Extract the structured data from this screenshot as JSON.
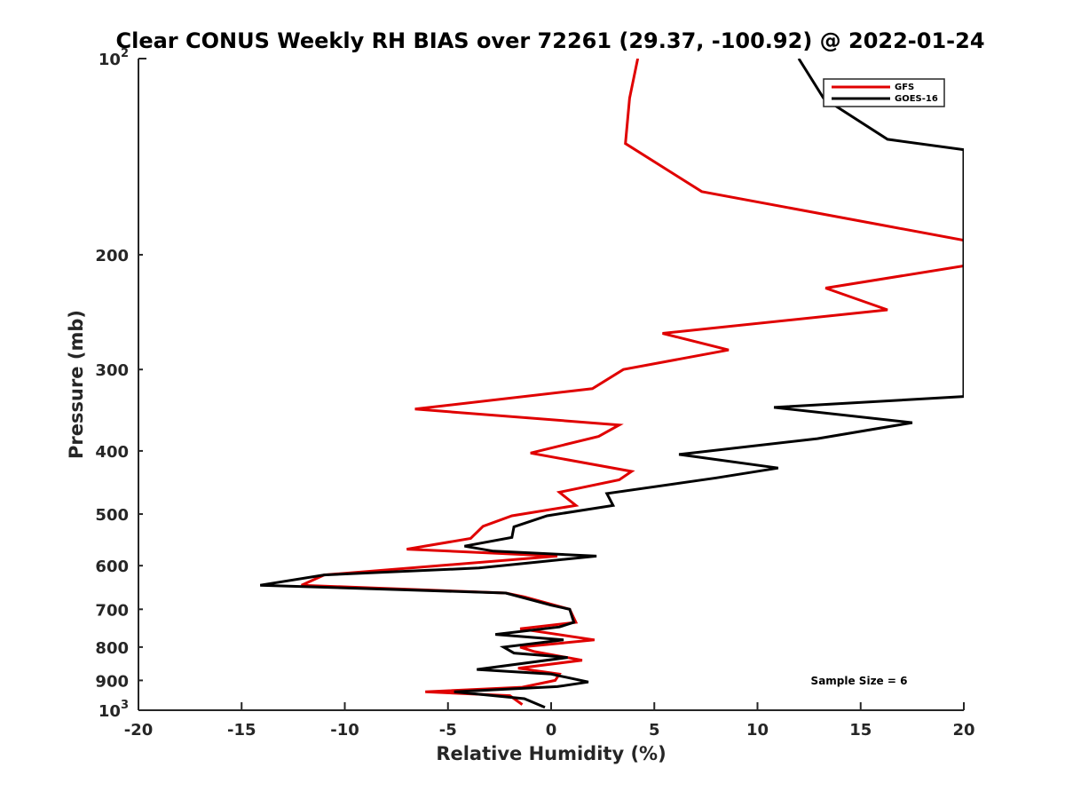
{
  "chart_data": {
    "type": "line",
    "title": "Clear CONUS Weekly RH BIAS over 72261 (29.37, -100.92) @ 2022-01-24",
    "xlabel": "Relative Humidity (%)",
    "ylabel": "Pressure (mb)",
    "xlim": [
      -20,
      20
    ],
    "ylim": [
      100,
      1000
    ],
    "y_scale": "log",
    "y_reversed": true,
    "grid": false,
    "legend_position": "top-right",
    "x_ticks": [
      "-20",
      "-15",
      "-10",
      "-5",
      "0",
      "5",
      "10",
      "15",
      "20"
    ],
    "y_ticks": [
      {
        "value": 100,
        "base": "10",
        "exp": "2"
      },
      {
        "value": 200,
        "label": "200"
      },
      {
        "value": 300,
        "label": "300"
      },
      {
        "value": 400,
        "label": "400"
      },
      {
        "value": 500,
        "label": "500"
      },
      {
        "value": 600,
        "label": "600"
      },
      {
        "value": 700,
        "label": "700"
      },
      {
        "value": 800,
        "label": "800"
      },
      {
        "value": 900,
        "label": "900"
      },
      {
        "value": 1000,
        "base": "10",
        "exp": "3"
      }
    ],
    "annotation": "Sample Size = 6",
    "series": [
      {
        "name": "GFS",
        "color": "#e00000",
        "points": [
          [
            4.2,
            100
          ],
          [
            3.8,
            115
          ],
          [
            3.6,
            135
          ],
          [
            7.3,
            160
          ],
          [
            16,
            180
          ],
          [
            20,
            190
          ],
          [
            20,
            208
          ],
          [
            13.3,
            225
          ],
          [
            16.3,
            243
          ],
          [
            5.4,
            264
          ],
          [
            8.6,
            280
          ],
          [
            3.5,
            300
          ],
          [
            2,
            321
          ],
          [
            -6.6,
            345
          ],
          [
            3.3,
            365
          ],
          [
            2.3,
            380
          ],
          [
            -1,
            403
          ],
          [
            3.9,
            430
          ],
          [
            3.3,
            443
          ],
          [
            0.4,
            463
          ],
          [
            1.2,
            485
          ],
          [
            -1.9,
            503
          ],
          [
            -3.3,
            522
          ],
          [
            -3.9,
            545
          ],
          [
            -7,
            566
          ],
          [
            0.3,
            580
          ],
          [
            -11,
            620
          ],
          [
            -12.1,
            643
          ],
          [
            -2.2,
            661
          ],
          [
            -1.3,
            670
          ],
          [
            0.9,
            700
          ],
          [
            1.2,
            733
          ],
          [
            -1.5,
            750
          ],
          [
            2.1,
            780
          ],
          [
            -1.5,
            800
          ],
          [
            -0.8,
            813
          ],
          [
            1.5,
            838
          ],
          [
            -1.6,
            862
          ],
          [
            0.4,
            880
          ],
          [
            0.2,
            900
          ],
          [
            -1.4,
            922
          ],
          [
            -6.1,
            937
          ],
          [
            -2,
            950
          ],
          [
            -1.4,
            980
          ]
        ]
      },
      {
        "name": "GOES-16",
        "color": "#000000",
        "points": [
          [
            12,
            100
          ],
          [
            13.2,
            115
          ],
          [
            16.3,
            133
          ],
          [
            20,
            138
          ],
          [
            20,
            330
          ],
          [
            10.8,
            343
          ],
          [
            17.5,
            362
          ],
          [
            12.9,
            383
          ],
          [
            6.2,
            405
          ],
          [
            11,
            425
          ],
          [
            8,
            440
          ],
          [
            2.7,
            465
          ],
          [
            3,
            485
          ],
          [
            -0.2,
            503
          ],
          [
            -1.8,
            523
          ],
          [
            -1.9,
            543
          ],
          [
            -4.2,
            560
          ],
          [
            -2.8,
            570
          ],
          [
            2.2,
            580
          ],
          [
            -3.5,
            605
          ],
          [
            -11,
            620
          ],
          [
            -14.1,
            643
          ],
          [
            -2.2,
            661
          ],
          [
            0,
            690
          ],
          [
            0.9,
            700
          ],
          [
            1.1,
            733
          ],
          [
            0.4,
            745
          ],
          [
            -2.7,
            765
          ],
          [
            0.6,
            780
          ],
          [
            -2.3,
            800
          ],
          [
            -1.8,
            817
          ],
          [
            0.8,
            830
          ],
          [
            -3.6,
            866
          ],
          [
            0,
            880
          ],
          [
            1.8,
            905
          ],
          [
            0.3,
            920
          ],
          [
            -4.7,
            937
          ],
          [
            -1.3,
            960
          ],
          [
            -0.3,
            990
          ]
        ]
      }
    ]
  }
}
